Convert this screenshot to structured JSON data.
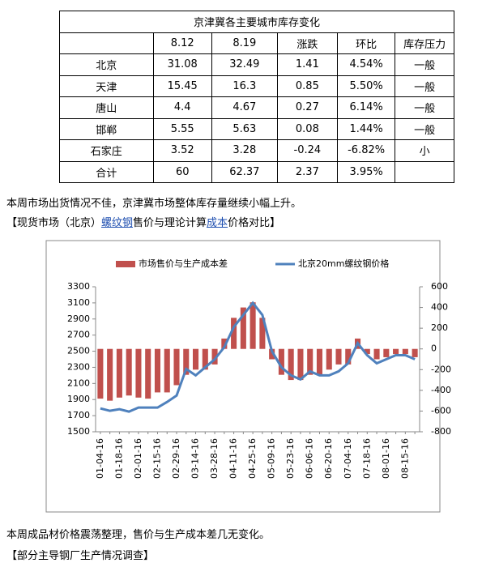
{
  "table": {
    "title": "京津冀各主要城市库存变化",
    "header": [
      "8.12",
      "8.19",
      "涨跌",
      "环比",
      "库存压力"
    ],
    "rows": [
      [
        "北京",
        "31.08",
        "32.49",
        "1.41",
        "4.54%",
        "一般"
      ],
      [
        "天津",
        "15.45",
        "16.3",
        "0.85",
        "5.50%",
        "一般"
      ],
      [
        "唐山",
        "4.4",
        "4.67",
        "0.27",
        "6.14%",
        "一般"
      ],
      [
        "邯郸",
        "5.55",
        "5.63",
        "0.08",
        "1.44%",
        "一般"
      ],
      [
        "石家庄",
        "3.52",
        "3.28",
        "-0.24",
        "-6.82%",
        "小"
      ],
      [
        "合计",
        "60",
        "62.37",
        "2.37",
        "3.95%"
      ]
    ]
  },
  "text1": "本周市场出货情况不佳，京津冀市场整体库存量继续小幅上升。",
  "heading1": [
    "【现货市场（北京）",
    "螺纹钢",
    "售价与理论计算",
    "成本",
    "价格对比】"
  ],
  "chart_data": {
    "type": "bar-line",
    "categories": [
      "01-04-16",
      null,
      "01-18-16",
      null,
      "02-01-16",
      null,
      "02-15-16",
      null,
      "02-29-16",
      null,
      "03-14-16",
      null,
      "03-28-16",
      null,
      "04-11-16",
      null,
      "04-25-16",
      null,
      "05-09-16",
      null,
      "05-23-16",
      null,
      "06-06-16",
      null,
      "06-20-16",
      null,
      "07-04-16",
      null,
      "07-18-16",
      null,
      "08-01-16",
      null,
      "08-15-16",
      null
    ],
    "series": [
      {
        "name": "市场售价与生产成本差",
        "color": "#c0504d",
        "axis": "y2",
        "values": [
          -480,
          -500,
          -470,
          -450,
          -470,
          -480,
          -420,
          -420,
          -350,
          -250,
          -200,
          -200,
          -150,
          100,
          300,
          400,
          450,
          300,
          -100,
          -250,
          -300,
          -300,
          -250,
          -250,
          -200,
          -150,
          -150,
          100,
          -50,
          -100,
          -80,
          -50,
          -50,
          -80
        ]
      },
      {
        "name": "北京20mm螺纹钢价格",
        "color": "#4f81bd",
        "values": [
          1790,
          1760,
          1780,
          1750,
          1800,
          1800,
          1800,
          1870,
          1950,
          2280,
          2200,
          2300,
          2400,
          2550,
          2800,
          2950,
          3100,
          2950,
          2500,
          2300,
          2200,
          2150,
          2250,
          2200,
          2200,
          2250,
          2350,
          2600,
          2450,
          2350,
          2400,
          2450,
          2450,
          2400
        ]
      }
    ],
    "ylim": [
      1500,
      3300
    ],
    "yticks": [
      1500,
      1700,
      1900,
      2100,
      2300,
      2500,
      2700,
      2900,
      3100,
      3300
    ],
    "y2lim": [
      -800,
      600
    ],
    "y2ticks": [
      -800,
      -600,
      -400,
      -200,
      0,
      200,
      400,
      600
    ]
  },
  "text2": "本周成品材价格震荡整理，售价与生产成本差几无变化。",
  "heading2": "【部分主导钢厂生产情况调查】"
}
